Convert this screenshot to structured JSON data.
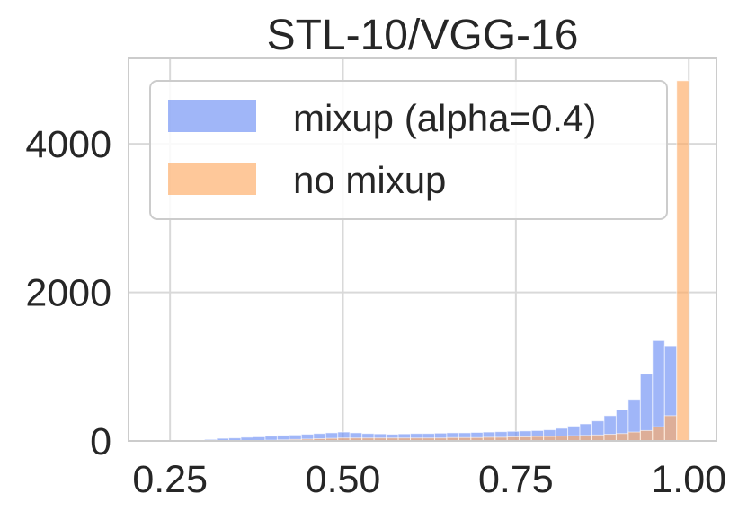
{
  "chart_data": {
    "type": "histogram",
    "title": "STL-10/VGG-16",
    "xlabel": "",
    "ylabel": "",
    "xlim": [
      0.19,
      1.04
    ],
    "ylim": [
      0,
      5150
    ],
    "xticks": [
      0.25,
      0.5,
      0.75,
      1.0
    ],
    "xtick_labels": [
      "0.25",
      "0.50",
      "0.75",
      "1.00"
    ],
    "yticks": [
      0,
      2000,
      4000
    ],
    "ytick_labels": [
      "0",
      "2000",
      "4000"
    ],
    "grid": true,
    "legend_position": "top-left",
    "bin_edges": [
      0.3,
      0.3175,
      0.335,
      0.3525,
      0.37,
      0.3875,
      0.405,
      0.4225,
      0.44,
      0.4575,
      0.475,
      0.4925,
      0.51,
      0.5275,
      0.545,
      0.5625,
      0.58,
      0.5975,
      0.615,
      0.6325,
      0.65,
      0.6675,
      0.685,
      0.7025,
      0.72,
      0.7375,
      0.755,
      0.7725,
      0.79,
      0.8075,
      0.825,
      0.8425,
      0.86,
      0.8775,
      0.895,
      0.9125,
      0.93,
      0.9475,
      0.965,
      0.9825,
      1.0
    ],
    "series": [
      {
        "name": "mixup (alpha=0.4)",
        "color": "#6d8ff5",
        "values": [
          20,
          35,
          40,
          50,
          55,
          65,
          75,
          80,
          90,
          100,
          110,
          120,
          110,
          100,
          95,
          90,
          95,
          100,
          100,
          105,
          110,
          110,
          115,
          120,
          125,
          130,
          135,
          140,
          150,
          170,
          200,
          230,
          270,
          340,
          420,
          560,
          900,
          1350,
          1280,
          0
        ]
      },
      {
        "name": "no mixup",
        "color": "#fdab64",
        "values": [
          0,
          0,
          0,
          0,
          5,
          10,
          15,
          20,
          25,
          30,
          35,
          40,
          40,
          40,
          40,
          40,
          40,
          40,
          40,
          40,
          45,
          45,
          45,
          50,
          50,
          55,
          55,
          60,
          60,
          65,
          70,
          75,
          80,
          90,
          100,
          120,
          140,
          190,
          340,
          4850
        ]
      }
    ]
  }
}
